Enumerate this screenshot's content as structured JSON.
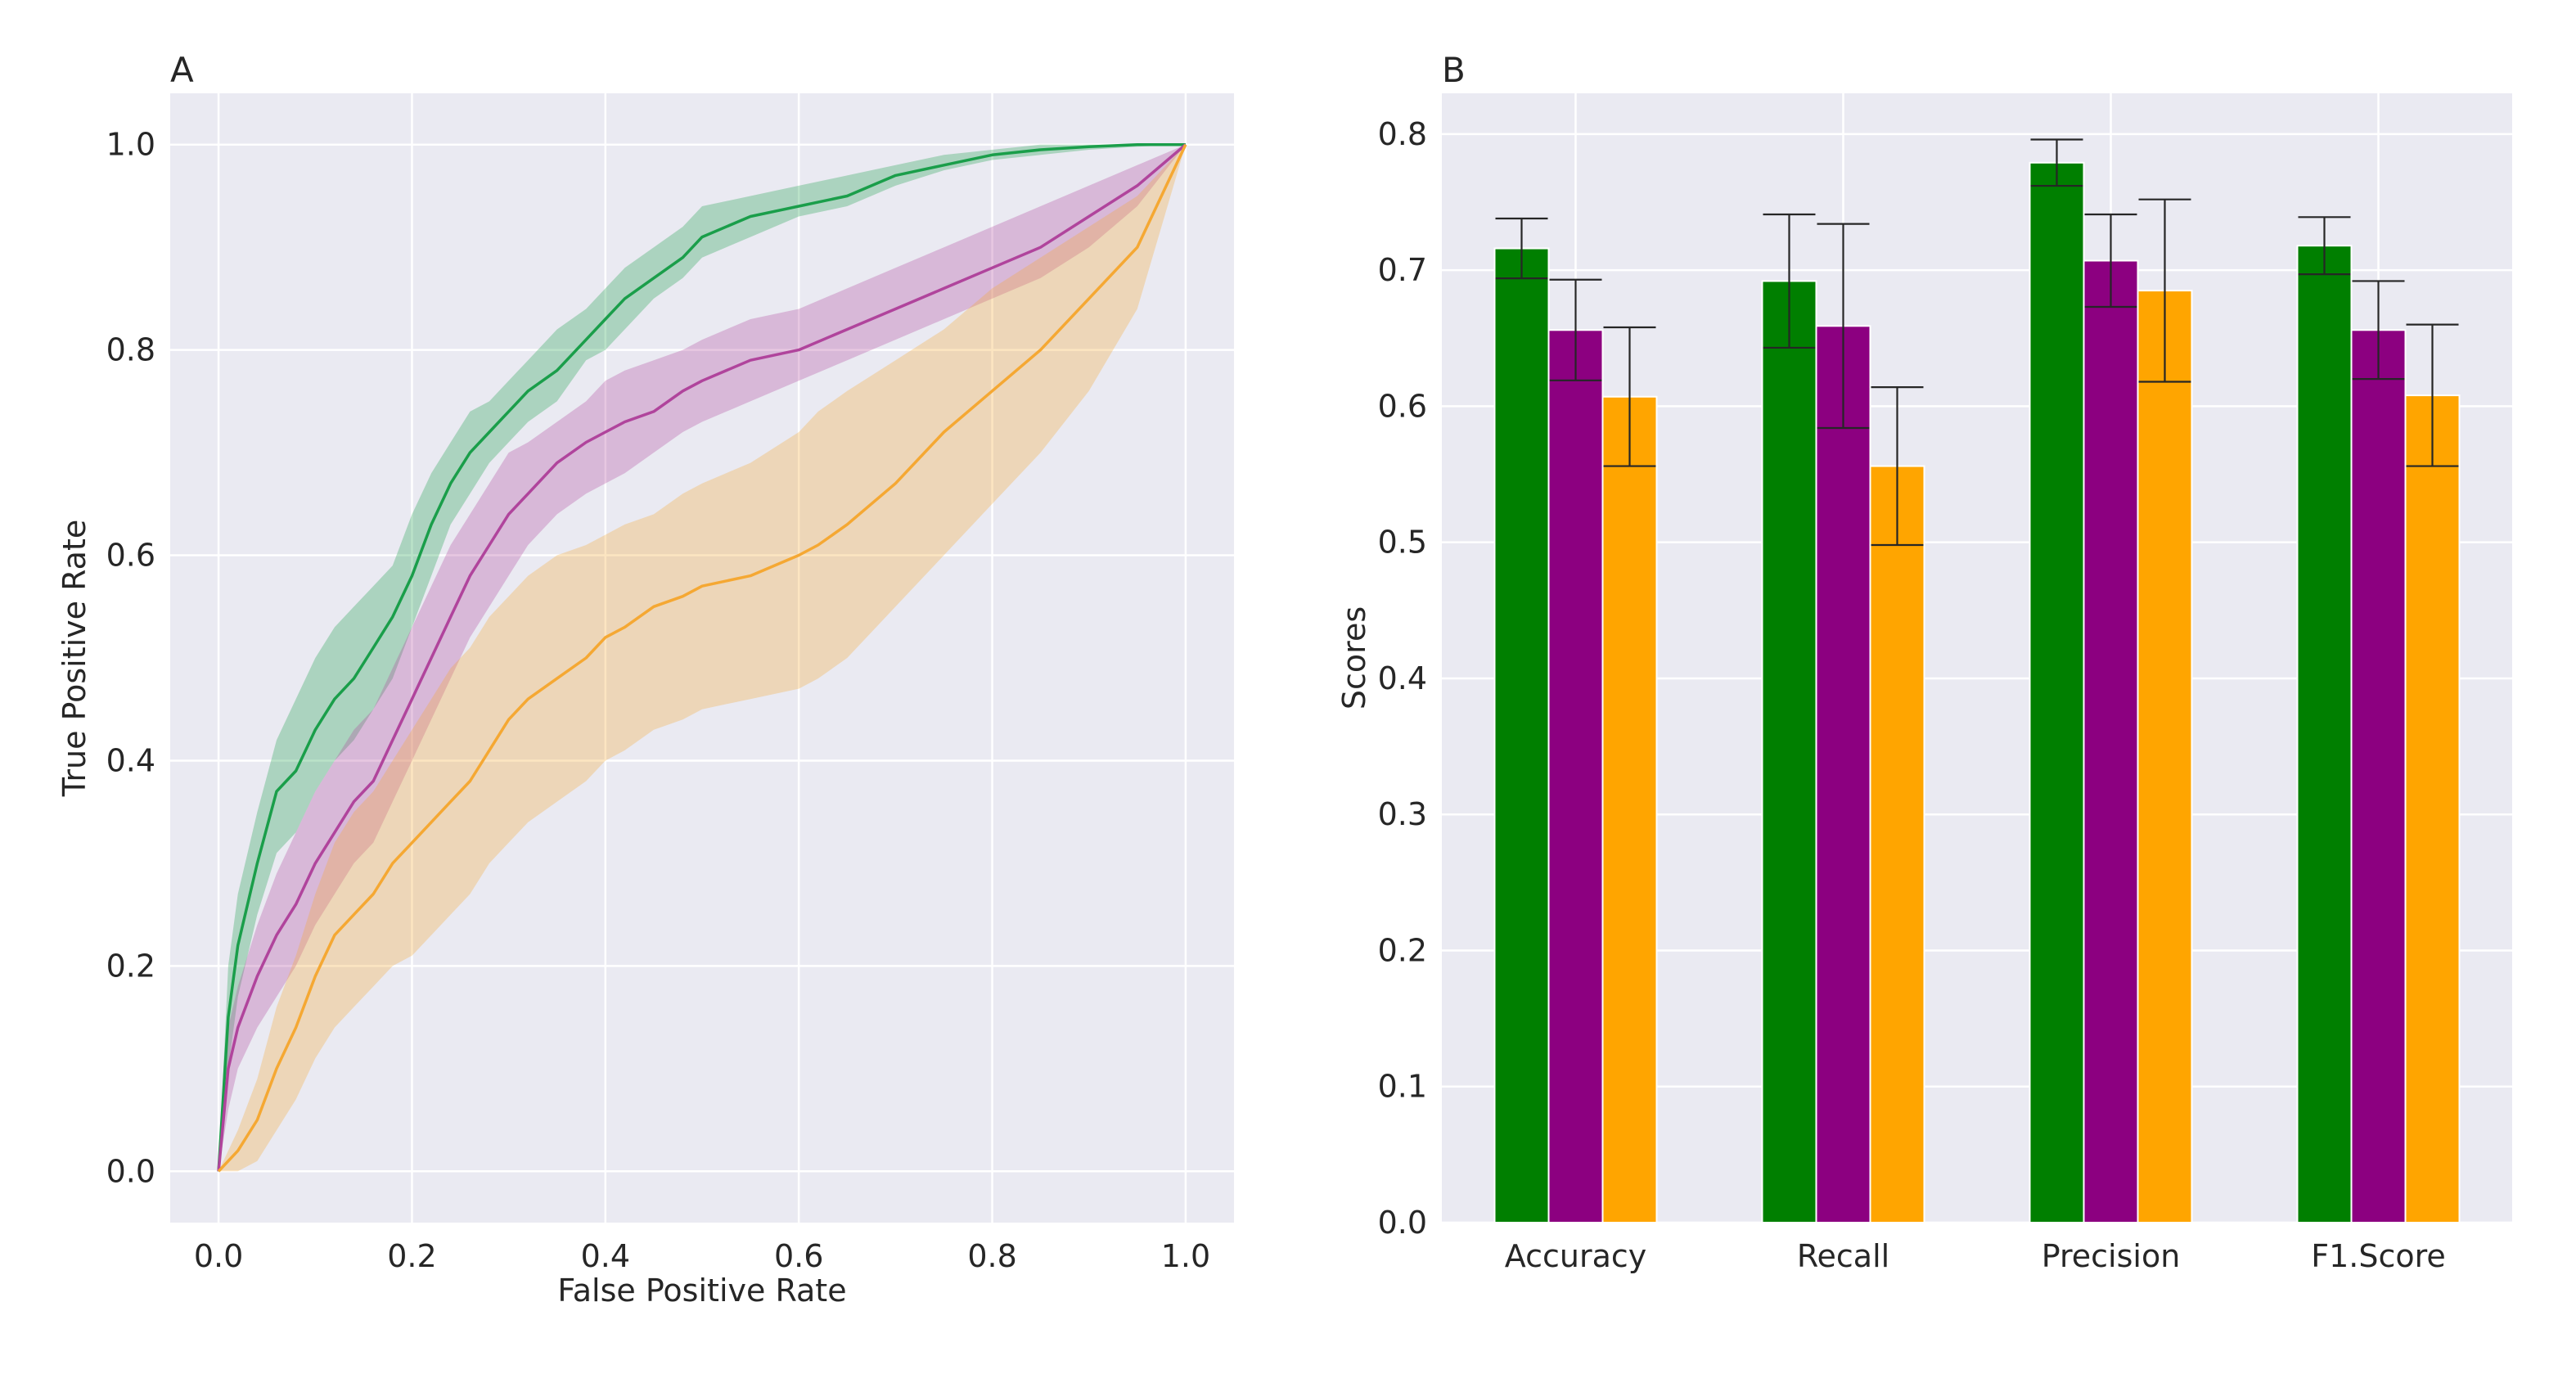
{
  "chart_data": [
    {
      "panel": "A",
      "type": "line",
      "title": "",
      "xlabel": "False Positive Rate",
      "ylabel": "True Positive Rate",
      "xlim": [
        -0.05,
        1.05
      ],
      "ylim": [
        -0.05,
        1.05
      ],
      "xticks": [
        "0.0",
        "0.2",
        "0.4",
        "0.6",
        "0.8",
        "1.0"
      ],
      "yticks": [
        "0.0",
        "0.2",
        "0.4",
        "0.6",
        "0.8",
        "1.0"
      ],
      "grid": true,
      "background": "#eaeaf2",
      "series": [
        {
          "name": "green",
          "color": "#1a9e4a",
          "x": [
            0,
            0.01,
            0.02,
            0.04,
            0.06,
            0.08,
            0.1,
            0.12,
            0.14,
            0.16,
            0.18,
            0.2,
            0.22,
            0.24,
            0.26,
            0.28,
            0.3,
            0.32,
            0.35,
            0.38,
            0.4,
            0.42,
            0.45,
            0.48,
            0.5,
            0.55,
            0.6,
            0.65,
            0.7,
            0.75,
            0.8,
            0.85,
            0.9,
            0.95,
            1.0
          ],
          "y": [
            0,
            0.15,
            0.22,
            0.3,
            0.37,
            0.39,
            0.43,
            0.46,
            0.48,
            0.51,
            0.54,
            0.58,
            0.63,
            0.67,
            0.7,
            0.72,
            0.74,
            0.76,
            0.78,
            0.81,
            0.83,
            0.85,
            0.87,
            0.89,
            0.91,
            0.93,
            0.94,
            0.95,
            0.97,
            0.98,
            0.99,
            0.995,
            0.998,
            1.0,
            1.0
          ],
          "lower": [
            0,
            0.1,
            0.17,
            0.25,
            0.31,
            0.33,
            0.37,
            0.4,
            0.42,
            0.45,
            0.48,
            0.53,
            0.58,
            0.63,
            0.66,
            0.69,
            0.71,
            0.73,
            0.75,
            0.79,
            0.8,
            0.82,
            0.85,
            0.87,
            0.89,
            0.91,
            0.93,
            0.94,
            0.96,
            0.975,
            0.985,
            0.99,
            0.995,
            0.998,
            1.0
          ],
          "upper": [
            0,
            0.2,
            0.27,
            0.35,
            0.42,
            0.46,
            0.5,
            0.53,
            0.55,
            0.57,
            0.59,
            0.64,
            0.68,
            0.71,
            0.74,
            0.75,
            0.77,
            0.79,
            0.82,
            0.84,
            0.86,
            0.88,
            0.9,
            0.92,
            0.94,
            0.95,
            0.96,
            0.97,
            0.98,
            0.99,
            0.995,
            1.0,
            1.0,
            1.0,
            1.0
          ]
        },
        {
          "name": "purple",
          "color": "#b0449c",
          "x": [
            0,
            0.01,
            0.02,
            0.04,
            0.06,
            0.08,
            0.1,
            0.12,
            0.14,
            0.16,
            0.18,
            0.2,
            0.22,
            0.24,
            0.26,
            0.28,
            0.3,
            0.32,
            0.35,
            0.38,
            0.4,
            0.42,
            0.45,
            0.48,
            0.5,
            0.55,
            0.6,
            0.65,
            0.7,
            0.75,
            0.8,
            0.85,
            0.9,
            0.95,
            1.0
          ],
          "y": [
            0,
            0.1,
            0.14,
            0.19,
            0.23,
            0.26,
            0.3,
            0.33,
            0.36,
            0.38,
            0.42,
            0.46,
            0.5,
            0.54,
            0.58,
            0.61,
            0.64,
            0.66,
            0.69,
            0.71,
            0.72,
            0.73,
            0.74,
            0.76,
            0.77,
            0.79,
            0.8,
            0.82,
            0.84,
            0.86,
            0.88,
            0.9,
            0.93,
            0.96,
            1.0
          ],
          "lower": [
            0,
            0.06,
            0.1,
            0.14,
            0.17,
            0.2,
            0.24,
            0.27,
            0.3,
            0.32,
            0.36,
            0.4,
            0.44,
            0.48,
            0.52,
            0.55,
            0.58,
            0.61,
            0.64,
            0.66,
            0.67,
            0.68,
            0.7,
            0.72,
            0.73,
            0.75,
            0.77,
            0.79,
            0.81,
            0.83,
            0.85,
            0.87,
            0.9,
            0.94,
            1.0
          ],
          "upper": [
            0,
            0.14,
            0.18,
            0.24,
            0.29,
            0.33,
            0.37,
            0.4,
            0.43,
            0.45,
            0.49,
            0.53,
            0.57,
            0.61,
            0.64,
            0.67,
            0.7,
            0.71,
            0.73,
            0.75,
            0.77,
            0.78,
            0.79,
            0.8,
            0.81,
            0.83,
            0.84,
            0.86,
            0.88,
            0.9,
            0.92,
            0.94,
            0.96,
            0.98,
            1.0
          ]
        },
        {
          "name": "orange",
          "color": "#f5a833",
          "x": [
            0,
            0.02,
            0.04,
            0.06,
            0.08,
            0.1,
            0.12,
            0.14,
            0.16,
            0.18,
            0.2,
            0.22,
            0.24,
            0.26,
            0.28,
            0.3,
            0.32,
            0.35,
            0.38,
            0.4,
            0.42,
            0.45,
            0.48,
            0.5,
            0.55,
            0.6,
            0.62,
            0.65,
            0.7,
            0.75,
            0.8,
            0.85,
            0.9,
            0.95,
            1.0
          ],
          "y": [
            0,
            0.02,
            0.05,
            0.1,
            0.14,
            0.19,
            0.23,
            0.25,
            0.27,
            0.3,
            0.32,
            0.34,
            0.36,
            0.38,
            0.41,
            0.44,
            0.46,
            0.48,
            0.5,
            0.52,
            0.53,
            0.55,
            0.56,
            0.57,
            0.58,
            0.6,
            0.61,
            0.63,
            0.67,
            0.72,
            0.76,
            0.8,
            0.85,
            0.9,
            1.0
          ],
          "lower": [
            0,
            0.0,
            0.01,
            0.04,
            0.07,
            0.11,
            0.14,
            0.16,
            0.18,
            0.2,
            0.21,
            0.23,
            0.25,
            0.27,
            0.3,
            0.32,
            0.34,
            0.36,
            0.38,
            0.4,
            0.41,
            0.43,
            0.44,
            0.45,
            0.46,
            0.47,
            0.48,
            0.5,
            0.55,
            0.6,
            0.65,
            0.7,
            0.76,
            0.84,
            1.0
          ],
          "upper": [
            0,
            0.04,
            0.09,
            0.16,
            0.21,
            0.27,
            0.32,
            0.35,
            0.37,
            0.4,
            0.43,
            0.46,
            0.49,
            0.51,
            0.54,
            0.56,
            0.58,
            0.6,
            0.61,
            0.62,
            0.63,
            0.64,
            0.66,
            0.67,
            0.69,
            0.72,
            0.74,
            0.76,
            0.79,
            0.82,
            0.86,
            0.89,
            0.92,
            0.95,
            1.0
          ]
        }
      ]
    },
    {
      "panel": "B",
      "type": "bar",
      "title": "",
      "xlabel": "",
      "ylabel": "Scores",
      "ylim": [
        0,
        0.83
      ],
      "yticks": [
        "0.0",
        "0.1",
        "0.2",
        "0.3",
        "0.4",
        "0.5",
        "0.6",
        "0.7",
        "0.8"
      ],
      "grid": true,
      "background": "#eaeaf2",
      "categories": [
        "Accuracy",
        "Recall",
        "Precision",
        "F1.Score"
      ],
      "series": [
        {
          "name": "green",
          "color": "#007f00",
          "values": [
            0.716,
            0.692,
            0.779,
            0.718
          ],
          "errors": [
            0.022,
            0.049,
            0.017,
            0.021
          ]
        },
        {
          "name": "purple",
          "color": "#8c0080",
          "values": [
            0.656,
            0.659,
            0.707,
            0.656
          ],
          "errors": [
            0.037,
            0.075,
            0.034,
            0.036
          ]
        },
        {
          "name": "orange",
          "color": "#ffa500",
          "values": [
            0.607,
            0.556,
            0.685,
            0.608
          ],
          "errors": [
            0.051,
            0.058,
            0.067,
            0.052
          ]
        }
      ]
    }
  ],
  "panel_labels": [
    "A",
    "B"
  ]
}
